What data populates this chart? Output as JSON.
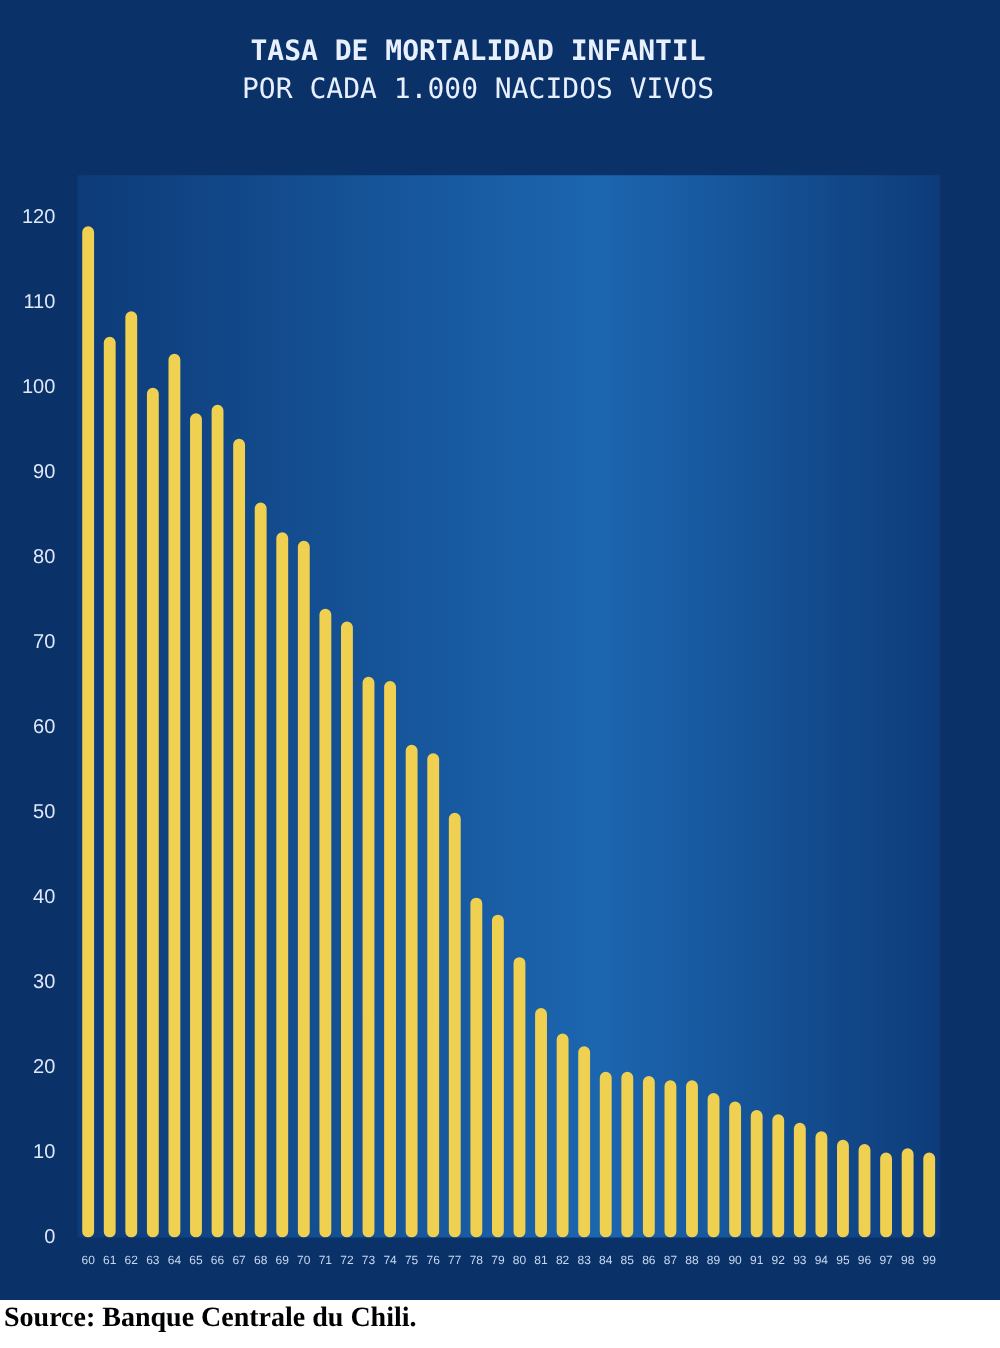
{
  "chart_data": {
    "type": "bar",
    "title": "TASA DE MORTALIDAD INFANTIL",
    "subtitle": "POR CADA 1.000 NACIDOS VIVOS",
    "categories": [
      "60",
      "61",
      "62",
      "63",
      "64",
      "65",
      "66",
      "67",
      "68",
      "69",
      "70",
      "71",
      "72",
      "73",
      "74",
      "75",
      "76",
      "77",
      "78",
      "79",
      "80",
      "81",
      "82",
      "83",
      "84",
      "85",
      "86",
      "87",
      "88",
      "89",
      "90",
      "91",
      "92",
      "93",
      "94",
      "95",
      "96",
      "97",
      "98",
      "99"
    ],
    "values": [
      119,
      106,
      109,
      100,
      104,
      97,
      98,
      94,
      86.5,
      83,
      82,
      74,
      72.5,
      66,
      65.5,
      58,
      57,
      50,
      40,
      38,
      33,
      27,
      24,
      22.5,
      19.5,
      19.5,
      19,
      18.5,
      18.5,
      17,
      16,
      15,
      14.5,
      13.5,
      12.5,
      11.5,
      11,
      10,
      10.5,
      10
    ],
    "color": "#f0d050",
    "ylim": [
      0,
      125
    ],
    "yticks": [
      0,
      10,
      20,
      30,
      40,
      50,
      60,
      70,
      80,
      90,
      100,
      110,
      120
    ],
    "annotations": [
      "Source: Banque Centrale du Chili."
    ]
  }
}
